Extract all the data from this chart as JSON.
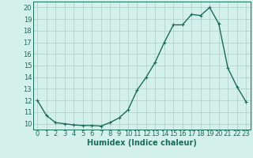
{
  "x": [
    0,
    1,
    2,
    3,
    4,
    5,
    6,
    7,
    8,
    9,
    10,
    11,
    12,
    13,
    14,
    15,
    16,
    17,
    18,
    19,
    20,
    21,
    22,
    23
  ],
  "y": [
    12,
    10.7,
    10.1,
    10.0,
    9.9,
    9.85,
    9.85,
    9.8,
    10.1,
    10.5,
    11.2,
    12.9,
    14.0,
    15.3,
    17.0,
    18.5,
    18.5,
    19.4,
    19.3,
    20.0,
    18.6,
    14.8,
    13.2,
    11.9
  ],
  "line_color": "#1a6b5a",
  "marker": "+",
  "markersize": 3,
  "linewidth": 1.0,
  "bg_color": "#d4f0eb",
  "grid_color_major": "#aecdc8",
  "xlabel": "Humidex (Indice chaleur)",
  "xlim": [
    -0.5,
    23.5
  ],
  "ylim": [
    9.5,
    20.5
  ],
  "yticks": [
    10,
    11,
    12,
    13,
    14,
    15,
    16,
    17,
    18,
    19,
    20
  ],
  "xticks": [
    0,
    1,
    2,
    3,
    4,
    5,
    6,
    7,
    8,
    9,
    10,
    11,
    12,
    13,
    14,
    15,
    16,
    17,
    18,
    19,
    20,
    21,
    22,
    23
  ],
  "xlabel_fontsize": 7,
  "tick_fontsize": 6
}
